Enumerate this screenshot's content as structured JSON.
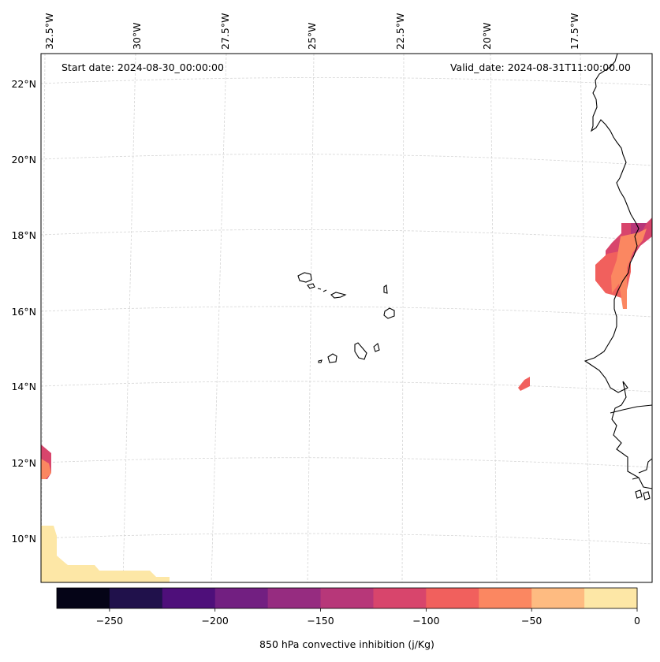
{
  "map": {
    "start_date_label": "Start date: 2024-08-30_00:00:00",
    "valid_date_label": "Valid_date: 2024-08-31T11:00:00.00",
    "lon_labels": [
      "32.5°W",
      "30°W",
      "27.5°W",
      "25°W",
      "22.5°W",
      "20°W",
      "17.5°W"
    ],
    "lat_labels": [
      "22°N",
      "20°N",
      "18°N",
      "16°N",
      "14°N",
      "12°N",
      "10°N"
    ]
  },
  "colorbar": {
    "label": "850 hPa convective inhibition (j/Kg)",
    "ticks": [
      "−250",
      "−200",
      "−150",
      "−100",
      "−50",
      "0"
    ],
    "bins": [
      {
        "color": "#050417"
      },
      {
        "color": "#20114b"
      },
      {
        "color": "#4e0f7a"
      },
      {
        "color": "#721f81"
      },
      {
        "color": "#962c80"
      },
      {
        "color": "#b73779"
      },
      {
        "color": "#d8456c"
      },
      {
        "color": "#f1605d"
      },
      {
        "color": "#fb8761"
      },
      {
        "color": "#febb81"
      },
      {
        "color": "#fde7a6"
      }
    ]
  },
  "colors": {
    "gridline": "#d5d5d5",
    "coastline": "#000000",
    "cin_0_25": "#fde7a6",
    "cin_25_50": "#febb81",
    "cin_50_75": "#fb8761",
    "cin_75_100": "#f1605d",
    "cin_100_125": "#d8456c",
    "cin_125_150": "#b73779"
  }
}
